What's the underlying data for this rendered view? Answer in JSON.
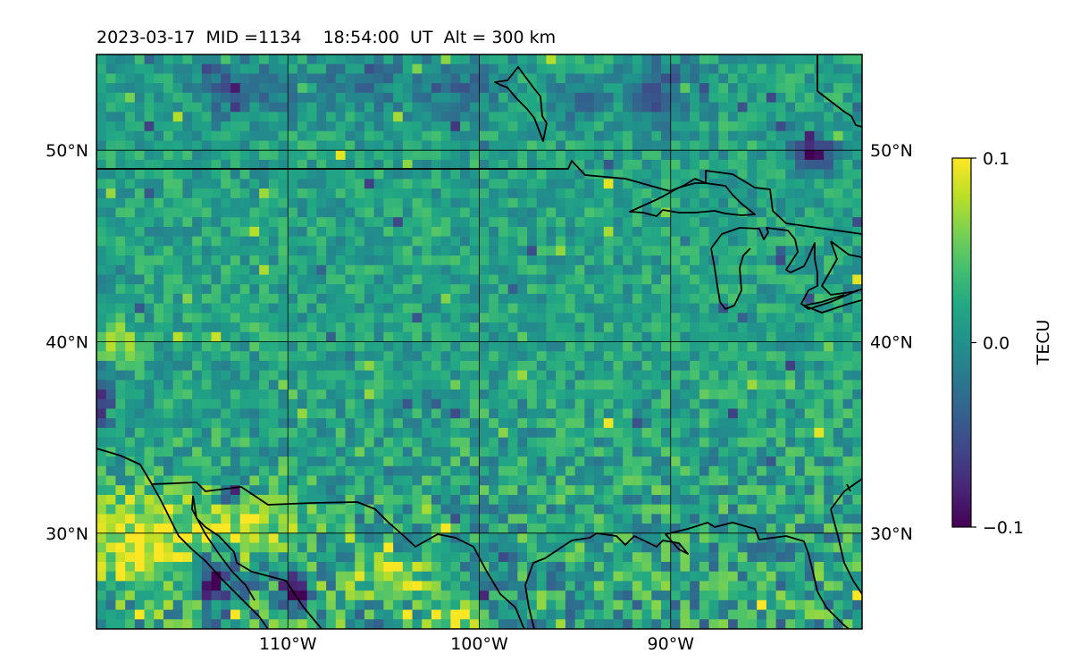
{
  "title": "2023-03-17  MID =1134    18:54:00  UT  Alt = 300 km",
  "chart_data": {
    "type": "heatmap",
    "title": "2023-03-17  MID =1134    18:54:00  UT  Alt = 300 km",
    "lon_range": [
      -120,
      -80
    ],
    "lat_range": [
      25,
      55
    ],
    "grid_lons": [
      -110,
      -100,
      -90
    ],
    "grid_lats": [
      30,
      40,
      50
    ],
    "lon_tick_labels": [
      "110°W",
      "100°W",
      "90°W"
    ],
    "lat_tick_labels": [
      "30°N",
      "40°N",
      "50°N"
    ],
    "cell_size_deg": 0.5,
    "colormap": "viridis",
    "colorbar": {
      "label": "TECU",
      "min": -0.1,
      "max": 0.1,
      "ticks": [
        0.1,
        0.0,
        -0.1
      ],
      "tick_labels": [
        "0.1",
        "0.0",
        "−0.1"
      ]
    },
    "background_value": 0.015,
    "anomalies": [
      {
        "lon": -113.5,
        "lat": 53.5,
        "rlon": 1.3,
        "rlat": 1.5,
        "value": -0.045
      },
      {
        "lon": -111.0,
        "lat": 53.0,
        "rlon": 2.0,
        "rlat": 1.5,
        "value": -0.02
      },
      {
        "lon": -106.0,
        "lat": 53.5,
        "rlon": 2.5,
        "rlat": 1.5,
        "value": -0.02
      },
      {
        "lon": -101.5,
        "lat": 53.3,
        "rlon": 2.5,
        "rlat": 1.5,
        "value": -0.03
      },
      {
        "lon": -90.5,
        "lat": 53.0,
        "rlon": 2.0,
        "rlat": 1.8,
        "value": -0.04
      },
      {
        "lon": -95.0,
        "lat": 52.5,
        "rlon": 1.5,
        "rlat": 1.2,
        "value": -0.025
      },
      {
        "lon": -82.6,
        "lat": 49.8,
        "rlon": 1.2,
        "rlat": 0.8,
        "value": -0.1
      },
      {
        "lon": -117.5,
        "lat": 29.5,
        "rlon": 3.0,
        "rlat": 2.5,
        "value": 0.1
      },
      {
        "lon": -112.5,
        "lat": 30.5,
        "rlon": 3.0,
        "rlat": 1.5,
        "value": 0.09
      },
      {
        "lon": -104.5,
        "lat": 27.5,
        "rlon": 2.0,
        "rlat": 1.2,
        "value": 0.08
      },
      {
        "lon": -101.5,
        "lat": 25.5,
        "rlon": 1.5,
        "rlat": 0.8,
        "value": 0.09
      },
      {
        "lon": -114.0,
        "lat": 27.5,
        "rlon": 1.2,
        "rlat": 1.2,
        "value": -0.09
      },
      {
        "lon": -109.5,
        "lat": 27.0,
        "rlon": 0.8,
        "rlat": 0.8,
        "value": -0.1
      },
      {
        "lon": -113.0,
        "lat": 32.0,
        "rlon": 0.6,
        "rlat": 0.6,
        "value": -0.09
      },
      {
        "lon": -119.5,
        "lat": 37.0,
        "rlon": 0.6,
        "rlat": 1.5,
        "value": -0.08
      },
      {
        "lon": -119.0,
        "lat": 40.0,
        "rlon": 1.0,
        "rlat": 1.0,
        "value": 0.08
      }
    ]
  },
  "coastline_color": "#000000",
  "frame_color": "#000000",
  "gridline_color": "#000000"
}
